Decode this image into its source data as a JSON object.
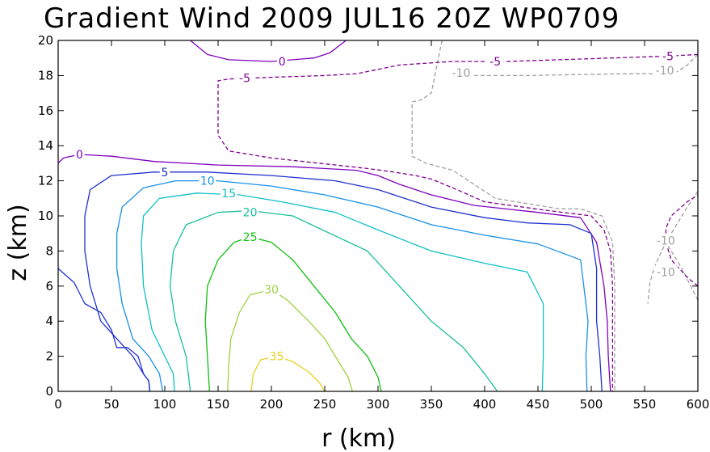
{
  "chart_data": {
    "type": "contour",
    "title": "Gradient Wind 2009 JUL16 20Z   WP0709",
    "xlabel": "r (km)",
    "ylabel": "z (km)",
    "xlim": [
      0,
      600
    ],
    "ylim": [
      0,
      20
    ],
    "xticks": [
      0,
      50,
      100,
      150,
      200,
      250,
      300,
      350,
      400,
      450,
      500,
      550,
      600
    ],
    "yticks": [
      0,
      2,
      4,
      6,
      8,
      10,
      12,
      14,
      16,
      18,
      20
    ],
    "grid": false,
    "contours": [
      {
        "level": -10,
        "color": "#a0a0a0",
        "dashed": true,
        "label": "-10",
        "segments": [
          [
            [
              360,
              20
            ],
            [
              350,
              17
            ],
            [
              340,
              16.6
            ],
            [
              332,
              16.5
            ],
            [
              332,
              14
            ],
            [
              332,
              13.4
            ],
            [
              345,
              13
            ],
            [
              370,
              12.6
            ],
            [
              385,
              12
            ],
            [
              410,
              11
            ],
            [
              450,
              10.6
            ],
            [
              470,
              10.4
            ],
            [
              490,
              10.4
            ],
            [
              510,
              10
            ],
            [
              520,
              8.5
            ],
            [
              522,
              6
            ],
            [
              522,
              4
            ],
            [
              522,
              0
            ]
          ],
          [
            [
              600,
              19.2
            ],
            [
              590,
              18.6
            ],
            [
              580,
              18.2
            ],
            [
              560,
              18.1
            ],
            [
              530,
              18.1
            ],
            [
              440,
              18
            ],
            [
              370,
              18
            ]
          ],
          [
            [
              600,
              11.4
            ],
            [
              590,
              10.5
            ],
            [
              580,
              9.5
            ],
            [
              570,
              8.5
            ],
            [
              560,
              7.2
            ],
            [
              555,
              6.2
            ],
            [
              553,
              5
            ]
          ],
          [
            [
              600,
              5.2
            ],
            [
              595,
              5.8
            ],
            [
              585,
              7
            ],
            [
              575,
              8
            ],
            [
              570,
              8.5
            ]
          ]
        ],
        "labels": [
          [
            378,
            18.15
          ],
          [
            570,
            8.6
          ],
          [
            570,
            6.8
          ],
          [
            569,
            18.3
          ]
        ]
      },
      {
        "level": -5,
        "color": "#800090",
        "dashed": true,
        "label": "-5",
        "segments": [
          [
            [
              600,
              19.2
            ],
            [
              570,
              19.1
            ],
            [
              520,
              19
            ],
            [
              470,
              18.9
            ],
            [
              420,
              18.8
            ],
            [
              370,
              18.8
            ],
            [
              320,
              18.6
            ],
            [
              280,
              18.1
            ],
            [
              250,
              18
            ],
            [
              200,
              17.9
            ],
            [
              160,
              17.8
            ],
            [
              150,
              17.7
            ],
            [
              150,
              16
            ],
            [
              150,
              14.6
            ],
            [
              160,
              13.7
            ],
            [
              170,
              13.6
            ],
            [
              200,
              13.3
            ],
            [
              290,
              12.7
            ],
            [
              315,
              12.5
            ],
            [
              335,
              12.3
            ],
            [
              350,
              12.1
            ],
            [
              370,
              11.6
            ],
            [
              400,
              10.8
            ],
            [
              460,
              10.3
            ],
            [
              500,
              10
            ],
            [
              512,
              9.2
            ],
            [
              518,
              8
            ],
            [
              520,
              6
            ],
            [
              520,
              4
            ],
            [
              520,
              2
            ],
            [
              520,
              0
            ]
          ],
          [
            [
              600,
              6
            ],
            [
              590,
              6.5
            ],
            [
              575,
              7.5
            ],
            [
              570,
              8.5
            ],
            [
              570,
              9.3
            ],
            [
              575,
              10
            ],
            [
              590,
              10.8
            ],
            [
              600,
              11.2
            ]
          ]
        ],
        "labels": [
          [
            175,
            17.85
          ],
          [
            410,
            18.8
          ],
          [
            572,
            19.1
          ]
        ]
      },
      {
        "level": 0,
        "color": "#8000c0",
        "dashed": false,
        "label": "0",
        "segments": [
          [
            [
              124,
              20
            ],
            [
              140,
              19.2
            ],
            [
              160,
              18.9
            ],
            [
              200,
              18.8
            ],
            [
              240,
              19
            ],
            [
              255,
              19.3
            ],
            [
              270,
              20
            ]
          ],
          [
            [
              0,
              13
            ],
            [
              5,
              13.3
            ],
            [
              20,
              13.5
            ],
            [
              50,
              13.4
            ],
            [
              90,
              13.1
            ],
            [
              150,
              12.9
            ],
            [
              220,
              12.8
            ],
            [
              280,
              12.6
            ],
            [
              300,
              12.3
            ],
            [
              320,
              11.8
            ],
            [
              350,
              11.2
            ],
            [
              390,
              10.6
            ],
            [
              450,
              10.2
            ],
            [
              490,
              9.9
            ],
            [
              505,
              8.5
            ],
            [
              512,
              6
            ],
            [
              515,
              4
            ],
            [
              516,
              2
            ],
            [
              518,
              0
            ]
          ]
        ],
        "labels": [
          [
            210,
            18.8
          ],
          [
            20,
            13.5
          ]
        ]
      },
      {
        "level": 5,
        "color": "#2030d0",
        "dashed": false,
        "label": "5",
        "segments": [
          [
            [
              0,
              7
            ],
            [
              15,
              6.2
            ],
            [
              25,
              5
            ],
            [
              40,
              4.5
            ],
            [
              50,
              3.5
            ],
            [
              55,
              2.5
            ],
            [
              65,
              2.5
            ],
            [
              75,
              2
            ],
            [
              80,
              1
            ],
            [
              85,
              0.6
            ],
            [
              86,
              0
            ]
          ],
          [
            [
              86,
              0
            ],
            [
              85,
              0.6
            ],
            [
              80,
              1
            ],
            [
              70,
              2
            ],
            [
              55,
              3
            ],
            [
              40,
              4
            ],
            [
              30,
              6
            ],
            [
              25,
              8
            ],
            [
              25,
              10
            ],
            [
              30,
              11.5
            ],
            [
              50,
              12.3
            ],
            [
              90,
              12.5
            ],
            [
              140,
              12.5
            ],
            [
              200,
              12.3
            ],
            [
              260,
              12
            ],
            [
              300,
              11.5
            ],
            [
              350,
              10.5
            ],
            [
              400,
              9.9
            ],
            [
              440,
              9.6
            ],
            [
              480,
              9.5
            ],
            [
              500,
              9
            ],
            [
              505,
              7
            ],
            [
              505,
              4
            ],
            [
              508,
              2
            ],
            [
              510,
              0
            ]
          ]
        ],
        "labels": [
          [
            100,
            12.5
          ]
        ]
      },
      {
        "level": 10,
        "color": "#1890e8",
        "dashed": false,
        "label": "10",
        "segments": [
          [
            [
              98,
              0
            ],
            [
              95,
              1
            ],
            [
              85,
              2
            ],
            [
              70,
              3
            ],
            [
              60,
              5
            ],
            [
              55,
              7
            ],
            [
              55,
              9
            ],
            [
              60,
              10.5
            ],
            [
              80,
              11.6
            ],
            [
              110,
              12
            ],
            [
              150,
              12
            ],
            [
              200,
              11.7
            ],
            [
              250,
              11.2
            ],
            [
              300,
              10.5
            ],
            [
              350,
              9.5
            ],
            [
              400,
              8.9
            ],
            [
              450,
              8.4
            ],
            [
              490,
              7.5
            ],
            [
              497,
              4
            ],
            [
              495,
              2
            ],
            [
              496,
              0
            ]
          ]
        ],
        "labels": [
          [
            140,
            12
          ]
        ]
      },
      {
        "level": 15,
        "color": "#10c0c8",
        "dashed": false,
        "label": "15",
        "segments": [
          [
            [
              109,
              0
            ],
            [
              108,
              1
            ],
            [
              100,
              2
            ],
            [
              88,
              3.5
            ],
            [
              80,
              6
            ],
            [
              78,
              8.5
            ],
            [
              80,
              10
            ],
            [
              95,
              11
            ],
            [
              130,
              11.3
            ],
            [
              170,
              11.2
            ],
            [
              210,
              10.8
            ],
            [
              260,
              10.2
            ],
            [
              300,
              9.2
            ],
            [
              350,
              8
            ],
            [
              400,
              7.3
            ],
            [
              440,
              6.8
            ],
            [
              455,
              5
            ],
            [
              455,
              2
            ],
            [
              454,
              0
            ]
          ]
        ],
        "labels": [
          [
            160,
            11.3
          ]
        ]
      },
      {
        "level": 20,
        "color": "#18c098",
        "dashed": false,
        "label": "20",
        "segments": [
          [
            [
              124,
              0
            ],
            [
              120,
              2
            ],
            [
              110,
              4
            ],
            [
              105,
              6
            ],
            [
              108,
              8
            ],
            [
              120,
              9.5
            ],
            [
              150,
              10.2
            ],
            [
              180,
              10.3
            ],
            [
              220,
              10
            ],
            [
              255,
              9
            ],
            [
              290,
              8
            ],
            [
              320,
              6
            ],
            [
              350,
              4
            ],
            [
              380,
              2.5
            ],
            [
              400,
              1
            ],
            [
              412,
              0
            ]
          ]
        ],
        "labels": [
          [
            180,
            10.2
          ]
        ]
      },
      {
        "level": 25,
        "color": "#10c010",
        "dashed": false,
        "label": "25",
        "segments": [
          [
            [
              142,
              0
            ],
            [
              140,
              2
            ],
            [
              138,
              4
            ],
            [
              140,
              6
            ],
            [
              150,
              7.5
            ],
            [
              165,
              8.5
            ],
            [
              180,
              8.8
            ],
            [
              200,
              8.5
            ],
            [
              220,
              7.5
            ],
            [
              240,
              6
            ],
            [
              260,
              4.5
            ],
            [
              275,
              3
            ],
            [
              290,
              2
            ],
            [
              300,
              0.8
            ],
            [
              303,
              0
            ]
          ]
        ],
        "labels": [
          [
            180,
            8.8
          ]
        ]
      },
      {
        "level": 30,
        "color": "#a0d040",
        "dashed": false,
        "label": "30",
        "segments": [
          [
            [
              159,
              0
            ],
            [
              160,
              1.5
            ],
            [
              162,
              3
            ],
            [
              170,
              4.5
            ],
            [
              180,
              5.5
            ],
            [
              200,
              5.8
            ],
            [
              215,
              5.2
            ],
            [
              235,
              4
            ],
            [
              250,
              3
            ],
            [
              260,
              2
            ],
            [
              272,
              0.8
            ],
            [
              276,
              0
            ]
          ]
        ],
        "labels": [
          [
            200,
            5.8
          ]
        ]
      },
      {
        "level": 35,
        "color": "#e8d020",
        "dashed": false,
        "label": "35",
        "segments": [
          [
            [
              181,
              0
            ],
            [
              183,
              1
            ],
            [
              190,
              1.8
            ],
            [
              205,
              2
            ],
            [
              220,
              1.7
            ],
            [
              235,
              1.1
            ],
            [
              245,
              0.5
            ],
            [
              250,
              0
            ]
          ]
        ],
        "labels": [
          [
            205,
            2
          ]
        ]
      }
    ]
  }
}
